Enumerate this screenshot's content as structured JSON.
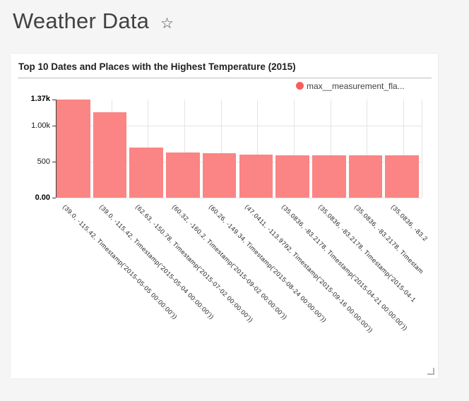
{
  "page": {
    "background_color": "#f5f5f5"
  },
  "header": {
    "title": "Weather Data",
    "favorite_icon": "star-outline"
  },
  "chart_card": {
    "title": "Top 10 Dates and Places with the Highest Temperature (2015)",
    "legend": {
      "label": "max__measurement_fla...",
      "marker_color": "#f85d5d"
    }
  },
  "chart_data": {
    "type": "bar",
    "title": "Top 10 Dates and Places with the Highest Temperature (2015)",
    "series_name": "max__measurement_fla...",
    "xlabel": "",
    "ylabel": "",
    "ylim": [
      0,
      1370
    ],
    "grid": true,
    "legend_position": "top-right",
    "x_label_rotation_deg": 45,
    "bar_color": "#fb8484",
    "categories": [
      "(39.0, -115.42, Timestamp('2015-05-05 00:00:00'))",
      "(39.0, -115.42, Timestamp('2015-05-04 00:00:00'))",
      "(62.63, -150.78, Timestamp('2015-07-02 00:00:00'))",
      "(60.32, -160.2, Timestamp('2015-09-02 00:00:00'))",
      "(60.26, -149.34, Timestamp('2015-08-24 00:00:00'))",
      "(47.0411, -113.9792, Timestamp('2015-09-16 00:00:00'))",
      "(35.0836, -83.2178, Timestamp('2015-04-21 00:00:00'))",
      "(35.0836, -83.2178, Timestamp('2015-04-1",
      "(35.0836, -83.2178, Timestam",
      "(35.0836, -83.2"
    ],
    "values": [
      1370,
      1190,
      700,
      632,
      615,
      596,
      594,
      592,
      590,
      588
    ],
    "yticks": [
      {
        "value": 1370,
        "label": "1.37k",
        "bold": true
      },
      {
        "value": 1000,
        "label": "1.00k",
        "bold": false
      },
      {
        "value": 500,
        "label": "500",
        "bold": false
      },
      {
        "value": 0,
        "label": "0.00",
        "bold": true
      }
    ]
  }
}
